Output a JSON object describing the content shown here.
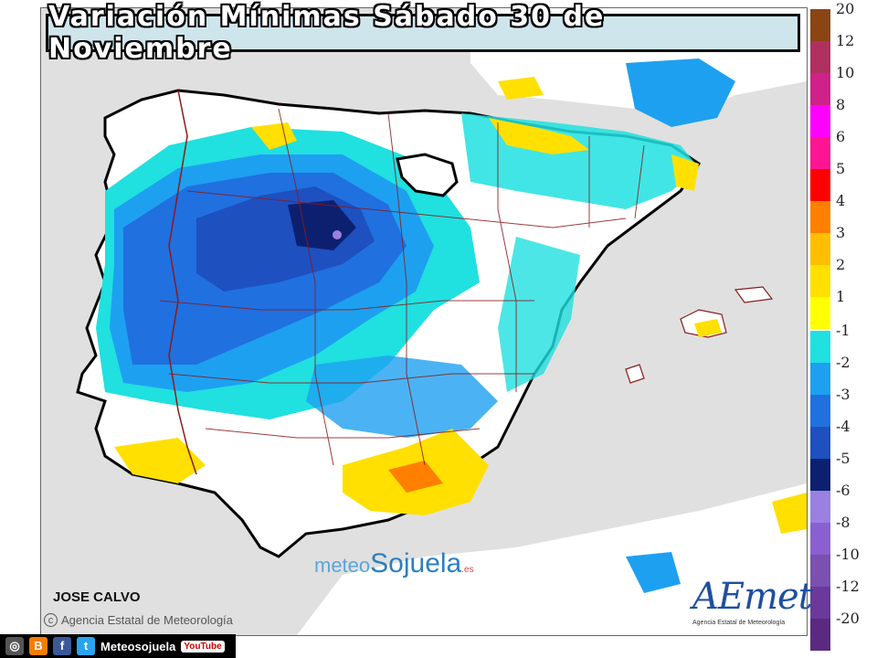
{
  "title": "Variación Mínimas Sábado 30 de Noviembre",
  "author": "JOSE CALVO",
  "agency_credit": "Agencia Estatal de Meteorología",
  "watermark": {
    "part1": "meteo",
    "part2": "Sojuela",
    "part3": ".es"
  },
  "logo": {
    "mark": "AEmet",
    "subtitle": "Agencia Estatal de Meteorología"
  },
  "social": {
    "handle": "Meteosojuela",
    "youtube": "YouTube"
  },
  "legend": {
    "positive": [
      {
        "label": "20",
        "color": "#8b4513"
      },
      {
        "label": "12",
        "color": "#b03060"
      },
      {
        "label": "10",
        "color": "#d0208a"
      },
      {
        "label": "8",
        "color": "#ff00ff"
      },
      {
        "label": "6",
        "color": "#ff1493"
      },
      {
        "label": "5",
        "color": "#ff0000"
      },
      {
        "label": "4",
        "color": "#ff7f00"
      },
      {
        "label": "3",
        "color": "#ffbf00"
      },
      {
        "label": "2",
        "color": "#ffe000"
      },
      {
        "label": "1",
        "color": "#ffff00"
      }
    ],
    "negative": [
      {
        "label": "-1",
        "color": "#20e0e0"
      },
      {
        "label": "-2",
        "color": "#1ea0f0"
      },
      {
        "label": "-3",
        "color": "#2070e0"
      },
      {
        "label": "-4",
        "color": "#1e50c0"
      },
      {
        "label": "-5",
        "color": "#0d2070"
      },
      {
        "label": "-6",
        "color": "#9a80e0"
      },
      {
        "label": "-8",
        "color": "#8a60d0"
      },
      {
        "label": "-10",
        "color": "#7a50b0"
      },
      {
        "label": "-12",
        "color": "#6a3a9a"
      },
      {
        "label": "-20",
        "color": "#5a2a80"
      }
    ]
  }
}
